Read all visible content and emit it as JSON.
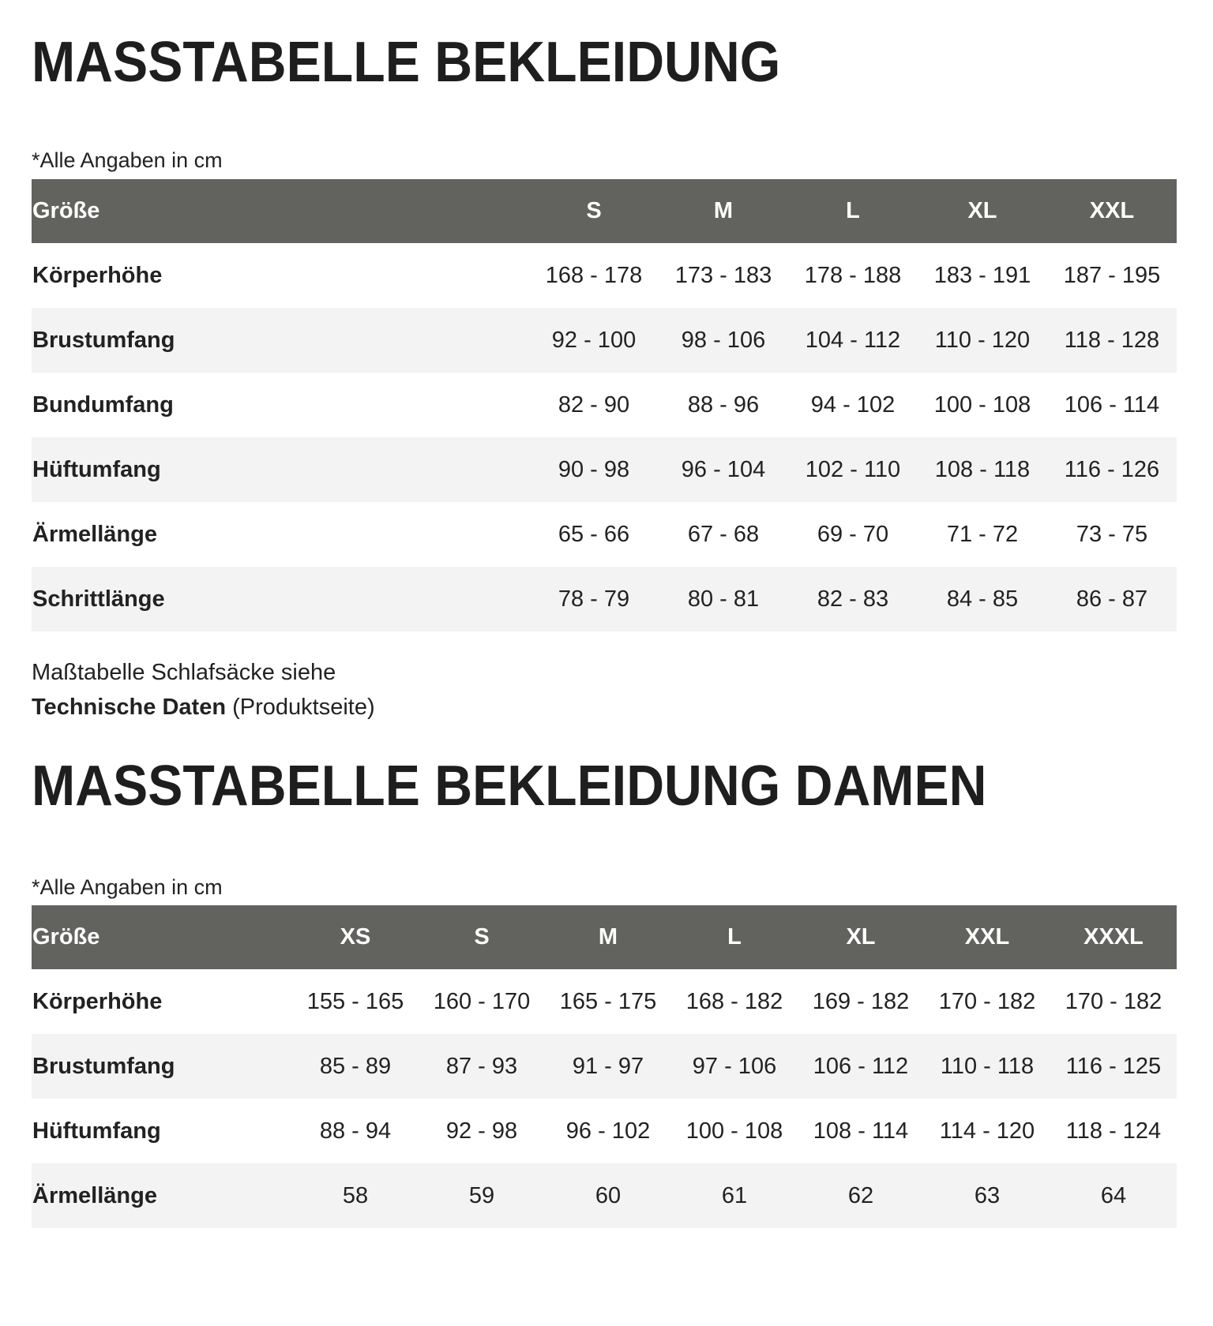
{
  "men": {
    "title": "MASSTABELLE BEKLEIDUNG",
    "note": "*Alle Angaben in cm",
    "header": [
      "Größe",
      "S",
      "M",
      "L",
      "XL",
      "XXL"
    ],
    "rows": [
      {
        "label": "Körperhöhe",
        "values": [
          "168 - 178",
          "173 - 183",
          "178 - 188",
          "183 - 191",
          "187 - 195"
        ]
      },
      {
        "label": "Brustumfang",
        "values": [
          "92 - 100",
          "98 - 106",
          "104 - 112",
          "110 - 120",
          "118 - 128"
        ]
      },
      {
        "label": "Bundumfang",
        "values": [
          "82 - 90",
          "88 - 96",
          "94 - 102",
          "100 - 108",
          "106 - 114"
        ]
      },
      {
        "label": "Hüftumfang",
        "values": [
          "90 - 98",
          "96 - 104",
          "102 - 110",
          "108 - 118",
          "116 - 126"
        ]
      },
      {
        "label": "Ärmellänge",
        "values": [
          "65 - 66",
          "67 - 68",
          "69 - 70",
          "71 - 72",
          "73 - 75"
        ]
      },
      {
        "label": "Schrittlänge",
        "values": [
          "78 - 79",
          "80 - 81",
          "82 - 83",
          "84 - 85",
          "86 - 87"
        ]
      }
    ]
  },
  "footnote": {
    "line1": "Maßtabelle Schlafsäcke siehe",
    "link": "Technische Daten",
    "suffix": " (Produktseite)"
  },
  "women": {
    "title": "MASSTABELLE BEKLEIDUNG DAMEN",
    "note": "*Alle Angaben in cm",
    "header": [
      "Größe",
      "XS",
      "S",
      "M",
      "L",
      "XL",
      "XXL",
      "XXXL"
    ],
    "rows": [
      {
        "label": "Körperhöhe",
        "values": [
          "155 - 165",
          "160 - 170",
          "165 - 175",
          "168 - 182",
          "169 - 182",
          "170 - 182",
          "170 - 182"
        ]
      },
      {
        "label": "Brustumfang",
        "values": [
          "85 - 89",
          "87 - 93",
          "91 - 97",
          "97 - 106",
          "106 - 112",
          "110 - 118",
          "116 - 125"
        ]
      },
      {
        "label": "Hüftumfang",
        "values": [
          "88 - 94",
          "92 - 98",
          "96 - 102",
          "100 - 108",
          "108 - 114",
          "114 - 120",
          "118 - 124"
        ]
      },
      {
        "label": "Ärmellänge",
        "values": [
          "58",
          "59",
          "60",
          "61",
          "62",
          "63",
          "64"
        ]
      }
    ]
  },
  "colors": {
    "header_bg": "#62635f",
    "row_alt": "#f3f3f3"
  }
}
